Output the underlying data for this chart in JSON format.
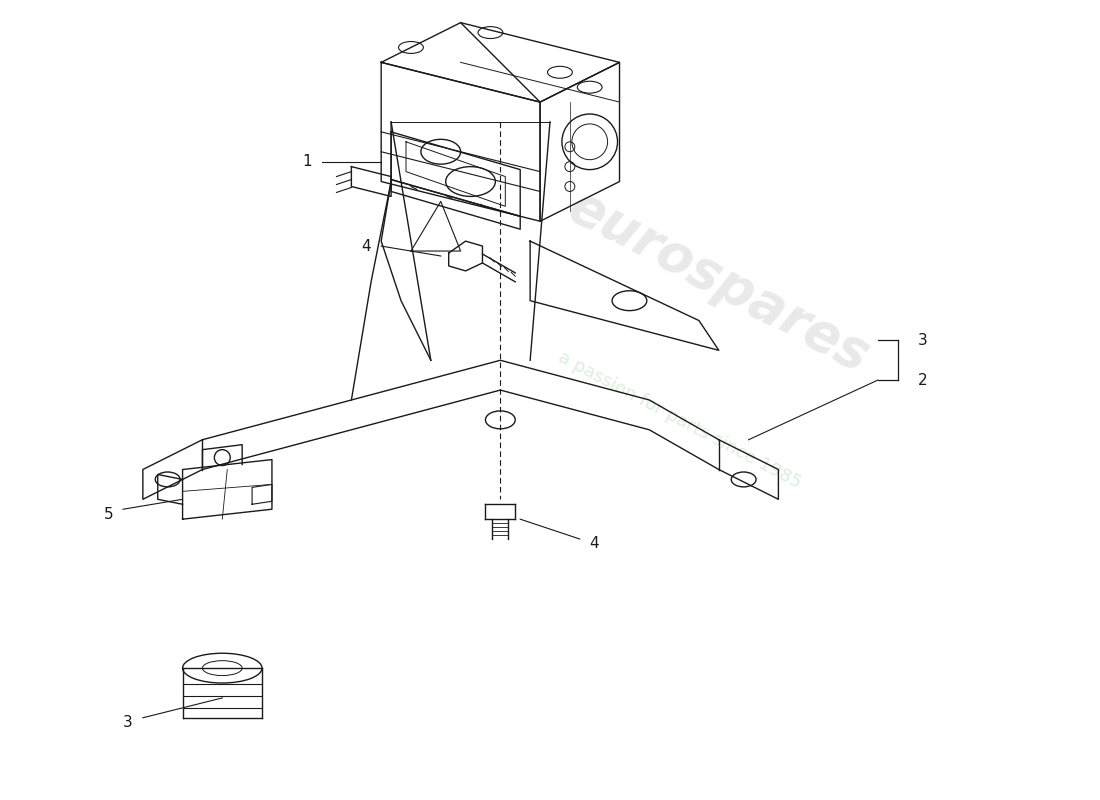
{
  "background_color": "#ffffff",
  "line_color": "#1a1a1a",
  "watermark1_text": "eurospares",
  "watermark1_color": "#d8d8d8",
  "watermark1_alpha": 0.55,
  "watermark2_text": "a passion for parts since 1985",
  "watermark2_color": "#c8e8c8",
  "watermark2_alpha": 0.65,
  "figsize": [
    11.0,
    8.0
  ],
  "dpi": 100
}
